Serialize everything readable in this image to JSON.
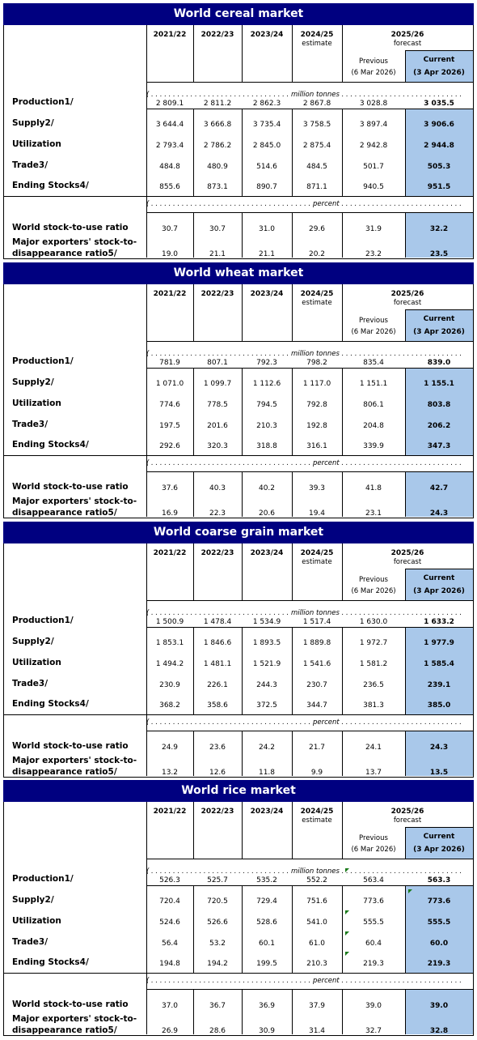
{
  "columns": {
    "years": [
      "2021/22",
      "2022/23",
      "2023/24",
      "2024/25"
    ],
    "estimate": "estimate",
    "forecast_year": "2025/26",
    "forecast": "forecast",
    "previous": "Previous",
    "previous_date": "(6 Mar 2026)",
    "current": "Current",
    "current_date": "(3 Apr 2026)"
  },
  "units": {
    "million_tonnes": "( . . . . . . . . . . . . . . . . . . . . . . . . . . . . . . . . million tonnes . . . . . . . . . . . . . . . . . . . . . . . . . . . . . . . . . . . )",
    "percent": "( . . . . . . . . . . . . . . . . . . . . . . . . . . . . . . . . . . . . . percent . . . . . . . . . . . . . . . . . . . . . . . . . . . . . . . . . . . . . . . . . )"
  },
  "row_labels": {
    "production": "Production1/",
    "supply": "Supply2/",
    "utilization": "Utilization",
    "trade": "Trade3/",
    "ending_stocks": "Ending Stocks4/",
    "stock_to_use": "World stock-to-use ratio",
    "exporters_line1": "Major exporters' stock-to-",
    "exporters_line2": "disappearance ratio5/"
  },
  "sections": [
    {
      "title": "World cereal market",
      "rows": [
        [
          "2 809.1",
          "2 811.2",
          "2 862.3",
          "2 867.8",
          "3 028.8",
          "3 035.5"
        ],
        [
          "3 644.4",
          "3 666.8",
          "3 735.4",
          "3 758.5",
          "3 897.4",
          "3 906.6"
        ],
        [
          "2 793.4",
          "2 786.2",
          "2 845.0",
          "2 875.4",
          "2 942.8",
          "2 944.8"
        ],
        [
          "484.8",
          "480.9",
          "514.6",
          "484.5",
          "501.7",
          "505.3"
        ],
        [
          "855.6",
          "873.1",
          "890.7",
          "871.1",
          "940.5",
          "951.5"
        ]
      ],
      "ratios": [
        [
          "30.7",
          "30.7",
          "31.0",
          "29.6",
          "31.9",
          "32.2"
        ],
        [
          "19.0",
          "21.1",
          "21.1",
          "20.2",
          "23.2",
          "23.5"
        ]
      ]
    },
    {
      "title": "World wheat market",
      "rows": [
        [
          "781.9",
          "807.1",
          "792.3",
          "798.2",
          "835.4",
          "839.0"
        ],
        [
          "1 071.0",
          "1 099.7",
          "1 112.6",
          "1 117.0",
          "1 151.1",
          "1 155.1"
        ],
        [
          "774.6",
          "778.5",
          "794.5",
          "792.8",
          "806.1",
          "803.8"
        ],
        [
          "197.5",
          "201.6",
          "210.3",
          "192.8",
          "204.8",
          "206.2"
        ],
        [
          "292.6",
          "320.3",
          "318.8",
          "316.1",
          "339.9",
          "347.3"
        ]
      ],
      "ratios": [
        [
          "37.6",
          "40.3",
          "40.2",
          "39.3",
          "41.8",
          "42.7"
        ],
        [
          "16.9",
          "22.3",
          "20.6",
          "19.4",
          "23.1",
          "24.3"
        ]
      ]
    },
    {
      "title": "World coarse grain market",
      "rows": [
        [
          "1 500.9",
          "1 478.4",
          "1 534.9",
          "1 517.4",
          "1 630.0",
          "1 633.2"
        ],
        [
          "1 853.1",
          "1 846.6",
          "1 893.5",
          "1 889.8",
          "1 972.7",
          "1 977.9"
        ],
        [
          "1 494.2",
          "1 481.1",
          "1 521.9",
          "1 541.6",
          "1 581.2",
          "1 585.4"
        ],
        [
          "230.9",
          "226.1",
          "244.3",
          "230.7",
          "236.5",
          "239.1"
        ],
        [
          "368.2",
          "358.6",
          "372.5",
          "344.7",
          "381.3",
          "385.0"
        ]
      ],
      "ratios": [
        [
          "24.9",
          "23.6",
          "24.2",
          "21.7",
          "24.1",
          "24.3"
        ],
        [
          "13.2",
          "12.6",
          "11.8",
          "9.9",
          "13.7",
          "13.5"
        ]
      ]
    },
    {
      "title": "World rice market",
      "rows": [
        [
          "526.3",
          "525.7",
          "535.2",
          "552.2",
          "563.4",
          "563.3"
        ],
        [
          "720.4",
          "720.5",
          "729.4",
          "751.6",
          "773.6",
          "773.6"
        ],
        [
          "524.6",
          "526.6",
          "528.6",
          "541.0",
          "555.5",
          "555.5"
        ],
        [
          "56.4",
          "53.2",
          "60.1",
          "61.0",
          "60.4",
          "60.0"
        ],
        [
          "194.8",
          "194.2",
          "199.5",
          "210.3",
          "219.3",
          "219.3"
        ]
      ],
      "ratios": [
        [
          "37.0",
          "36.7",
          "36.9",
          "37.9",
          "39.0",
          "39.0"
        ],
        [
          "26.9",
          "28.6",
          "30.9",
          "31.4",
          "32.7",
          "32.8"
        ]
      ]
    }
  ],
  "comment_marker_color": "#1a7a1a",
  "current_column_color": "#a9c8ea",
  "title_bar_color": "#000080"
}
